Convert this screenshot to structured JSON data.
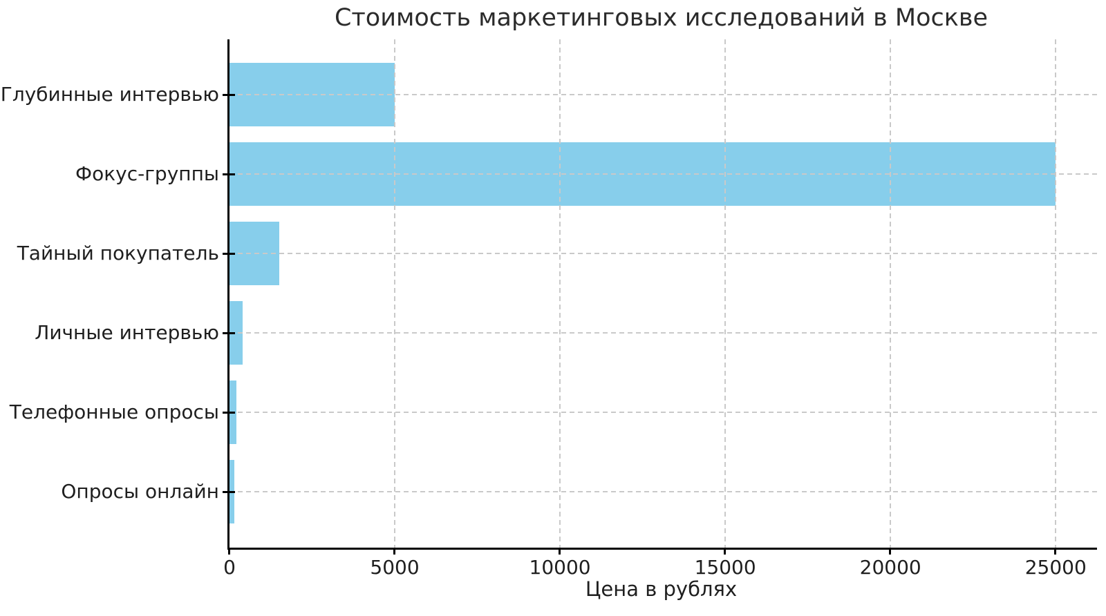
{
  "chart_data": {
    "type": "bar",
    "orientation": "horizontal",
    "title": "Стоимость маркетинговых исследований в Москве",
    "xlabel": "Цена в рублях",
    "ylabel": "",
    "categories": [
      "Глубинные интервью",
      "Фокус-группы",
      "Тайный покупатель",
      "Личные интервью",
      "Телефонные опросы",
      "Опросы онлайн"
    ],
    "values": [
      5000,
      25000,
      1500,
      400,
      200,
      150
    ],
    "xlim": [
      0,
      26250
    ],
    "xticks": [
      0,
      5000,
      10000,
      15000,
      20000,
      25000
    ],
    "xtick_labels": [
      "0",
      "5000",
      "10000",
      "15000",
      "20000",
      "25000"
    ],
    "grid": true,
    "grid_style": "dashed",
    "legend": false,
    "bar_color": "#87CEEB",
    "grid_color": "#c9c9c9",
    "axis_color": "#000000",
    "text_color": "#1f1f1f"
  }
}
